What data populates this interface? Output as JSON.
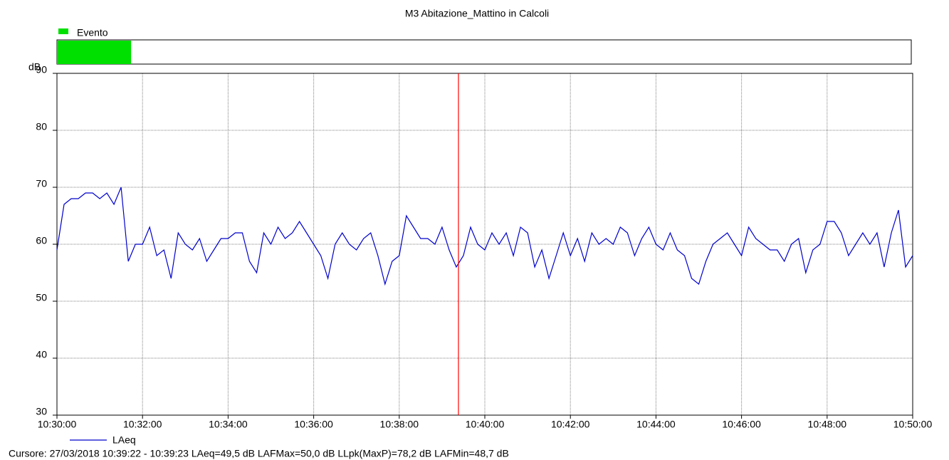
{
  "chart_data": {
    "type": "line",
    "title": "M3 Abitazione_Mattino in Calcoli",
    "y_label": "dB",
    "footer": "Cursore: 27/03/2018 10:39:22 - 10:39:23  LAeq=49,5 dB  LAFMax=50,0 dB  LLpk(MaxP)=78,2 dB  LAFMin=48,7 dB",
    "event": {
      "name": "Evento",
      "color": "#00e000",
      "start": "10:30:00",
      "end": "10:31:44"
    },
    "cursor": {
      "x": "10:39:23",
      "color": "#ff0000"
    },
    "xlim": [
      "10:30:00",
      "10:50:00"
    ],
    "xticks": [
      "10:30:00",
      "10:32:00",
      "10:34:00",
      "10:36:00",
      "10:38:00",
      "10:40:00",
      "10:42:00",
      "10:44:00",
      "10:46:00",
      "10:48:00",
      "10:50:00"
    ],
    "ylim": [
      30,
      90
    ],
    "yticks": [
      30,
      40,
      50,
      60,
      70,
      80,
      90
    ],
    "grid": true,
    "x": [
      "10:30:00",
      "10:30:10",
      "10:30:20",
      "10:30:30",
      "10:30:40",
      "10:30:50",
      "10:31:00",
      "10:31:10",
      "10:31:20",
      "10:31:30",
      "10:31:40",
      "10:31:50",
      "10:32:00",
      "10:32:10",
      "10:32:20",
      "10:32:30",
      "10:32:40",
      "10:32:50",
      "10:33:00",
      "10:33:10",
      "10:33:20",
      "10:33:30",
      "10:33:40",
      "10:33:50",
      "10:34:00",
      "10:34:10",
      "10:34:20",
      "10:34:30",
      "10:34:40",
      "10:34:50",
      "10:35:00",
      "10:35:10",
      "10:35:20",
      "10:35:30",
      "10:35:40",
      "10:35:50",
      "10:36:00",
      "10:36:10",
      "10:36:20",
      "10:36:30",
      "10:36:40",
      "10:36:50",
      "10:37:00",
      "10:37:10",
      "10:37:20",
      "10:37:30",
      "10:37:40",
      "10:37:50",
      "10:38:00",
      "10:38:10",
      "10:38:20",
      "10:38:30",
      "10:38:40",
      "10:38:50",
      "10:39:00",
      "10:39:10",
      "10:39:20",
      "10:39:30",
      "10:39:40",
      "10:39:50",
      "10:40:00",
      "10:40:10",
      "10:40:20",
      "10:40:30",
      "10:40:40",
      "10:40:50",
      "10:41:00",
      "10:41:10",
      "10:41:20",
      "10:41:30",
      "10:41:40",
      "10:41:50",
      "10:42:00",
      "10:42:10",
      "10:42:20",
      "10:42:30",
      "10:42:40",
      "10:42:50",
      "10:43:00",
      "10:43:10",
      "10:43:20",
      "10:43:30",
      "10:43:40",
      "10:43:50",
      "10:44:00",
      "10:44:10",
      "10:44:20",
      "10:44:30",
      "10:44:40",
      "10:44:50",
      "10:45:00",
      "10:45:10",
      "10:45:20",
      "10:45:30",
      "10:45:40",
      "10:45:50",
      "10:46:00",
      "10:46:10",
      "10:46:20",
      "10:46:30",
      "10:46:40",
      "10:46:50",
      "10:47:00",
      "10:47:10",
      "10:47:20",
      "10:47:30",
      "10:47:40",
      "10:47:50",
      "10:48:00",
      "10:48:10",
      "10:48:20",
      "10:48:30",
      "10:48:40",
      "10:48:50",
      "10:49:00",
      "10:49:10",
      "10:49:20",
      "10:49:30",
      "10:49:40",
      "10:49:50",
      "10:50:00"
    ],
    "series": [
      {
        "name": "LAeq",
        "color": "#0000cc",
        "values": [
          59,
          67,
          68,
          68,
          69,
          69,
          68,
          69,
          67,
          70,
          57,
          60,
          60,
          63,
          58,
          59,
          54,
          62,
          60,
          59,
          61,
          57,
          59,
          61,
          61,
          62,
          62,
          57,
          55,
          62,
          60,
          63,
          61,
          62,
          64,
          62,
          60,
          58,
          54,
          60,
          62,
          60,
          59,
          61,
          62,
          58,
          53,
          57,
          58,
          65,
          63,
          61,
          61,
          60,
          63,
          59,
          56,
          58,
          63,
          60,
          59,
          62,
          60,
          62,
          58,
          63,
          62,
          56,
          59,
          54,
          58,
          62,
          58,
          61,
          57,
          62,
          60,
          61,
          60,
          63,
          62,
          58,
          61,
          63,
          60,
          59,
          62,
          59,
          58,
          54,
          53,
          57,
          60,
          61,
          62,
          60,
          58,
          63,
          61,
          60,
          59,
          59,
          57,
          60,
          61,
          55,
          59,
          60,
          64,
          64,
          62,
          58,
          60,
          62,
          60,
          62,
          56,
          62,
          66,
          56,
          58
        ]
      }
    ]
  }
}
